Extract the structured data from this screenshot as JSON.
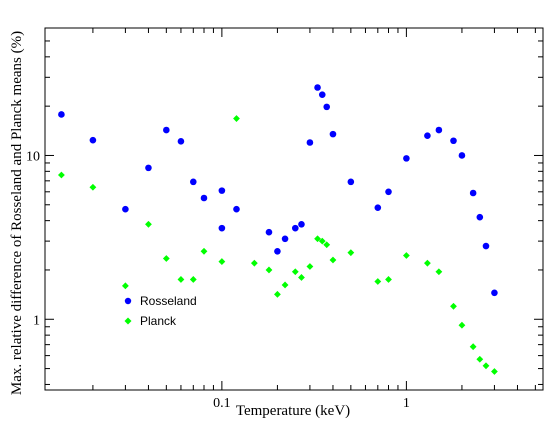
{
  "chart_data": {
    "type": "scatter",
    "title": "",
    "xlabel": "Temperature (keV)",
    "ylabel": "Max. relative difference of Rosseland and Planck means (%)",
    "xscale": "log",
    "yscale": "log",
    "xlim": [
      0.011,
      5.5
    ],
    "ylim": [
      0.37,
      60
    ],
    "grid": false,
    "legend_position": "lower-left",
    "x_major_ticks": [
      0.1,
      1
    ],
    "x_tick_labels": [
      "0.1",
      "1"
    ],
    "y_major_ticks": [
      1,
      10
    ],
    "y_tick_labels": [
      "1",
      "10"
    ],
    "series": [
      {
        "name": "Rosseland",
        "color": "#0000ff",
        "marker": "circle",
        "x": [
          0.0135,
          0.02,
          0.03,
          0.04,
          0.05,
          0.06,
          0.07,
          0.08,
          0.1,
          0.1,
          0.12,
          0.18,
          0.2,
          0.22,
          0.25,
          0.27,
          0.3,
          0.33,
          0.35,
          0.37,
          0.4,
          0.5,
          0.7,
          0.8,
          1.0,
          1.3,
          1.5,
          1.8,
          2.0,
          2.3,
          2.5,
          2.7,
          3.0
        ],
        "y": [
          17.8,
          12.4,
          4.7,
          8.4,
          14.3,
          12.2,
          6.9,
          5.5,
          6.1,
          3.6,
          4.7,
          3.4,
          2.6,
          3.1,
          3.6,
          3.8,
          12.0,
          26.0,
          23.5,
          19.8,
          13.5,
          6.9,
          4.8,
          6.0,
          9.6,
          13.2,
          14.3,
          12.3,
          10.0,
          5.9,
          4.2,
          2.8,
          1.45
        ]
      },
      {
        "name": "Planck",
        "color": "#00ff00",
        "marker": "diamond",
        "x": [
          0.0135,
          0.02,
          0.03,
          0.04,
          0.05,
          0.06,
          0.07,
          0.08,
          0.1,
          0.12,
          0.15,
          0.18,
          0.2,
          0.22,
          0.25,
          0.27,
          0.3,
          0.33,
          0.35,
          0.37,
          0.4,
          0.5,
          0.7,
          0.8,
          1.0,
          1.3,
          1.5,
          1.8,
          2.0,
          2.3,
          2.5,
          2.7,
          3.0
        ],
        "y": [
          7.6,
          6.4,
          1.6,
          3.8,
          2.35,
          1.75,
          1.75,
          2.6,
          2.25,
          16.8,
          2.2,
          2.0,
          1.42,
          1.62,
          1.95,
          1.8,
          2.1,
          3.1,
          3.0,
          2.85,
          2.3,
          2.55,
          1.7,
          1.75,
          2.45,
          2.2,
          1.95,
          1.2,
          0.92,
          0.68,
          0.57,
          0.52,
          0.48
        ]
      }
    ]
  }
}
